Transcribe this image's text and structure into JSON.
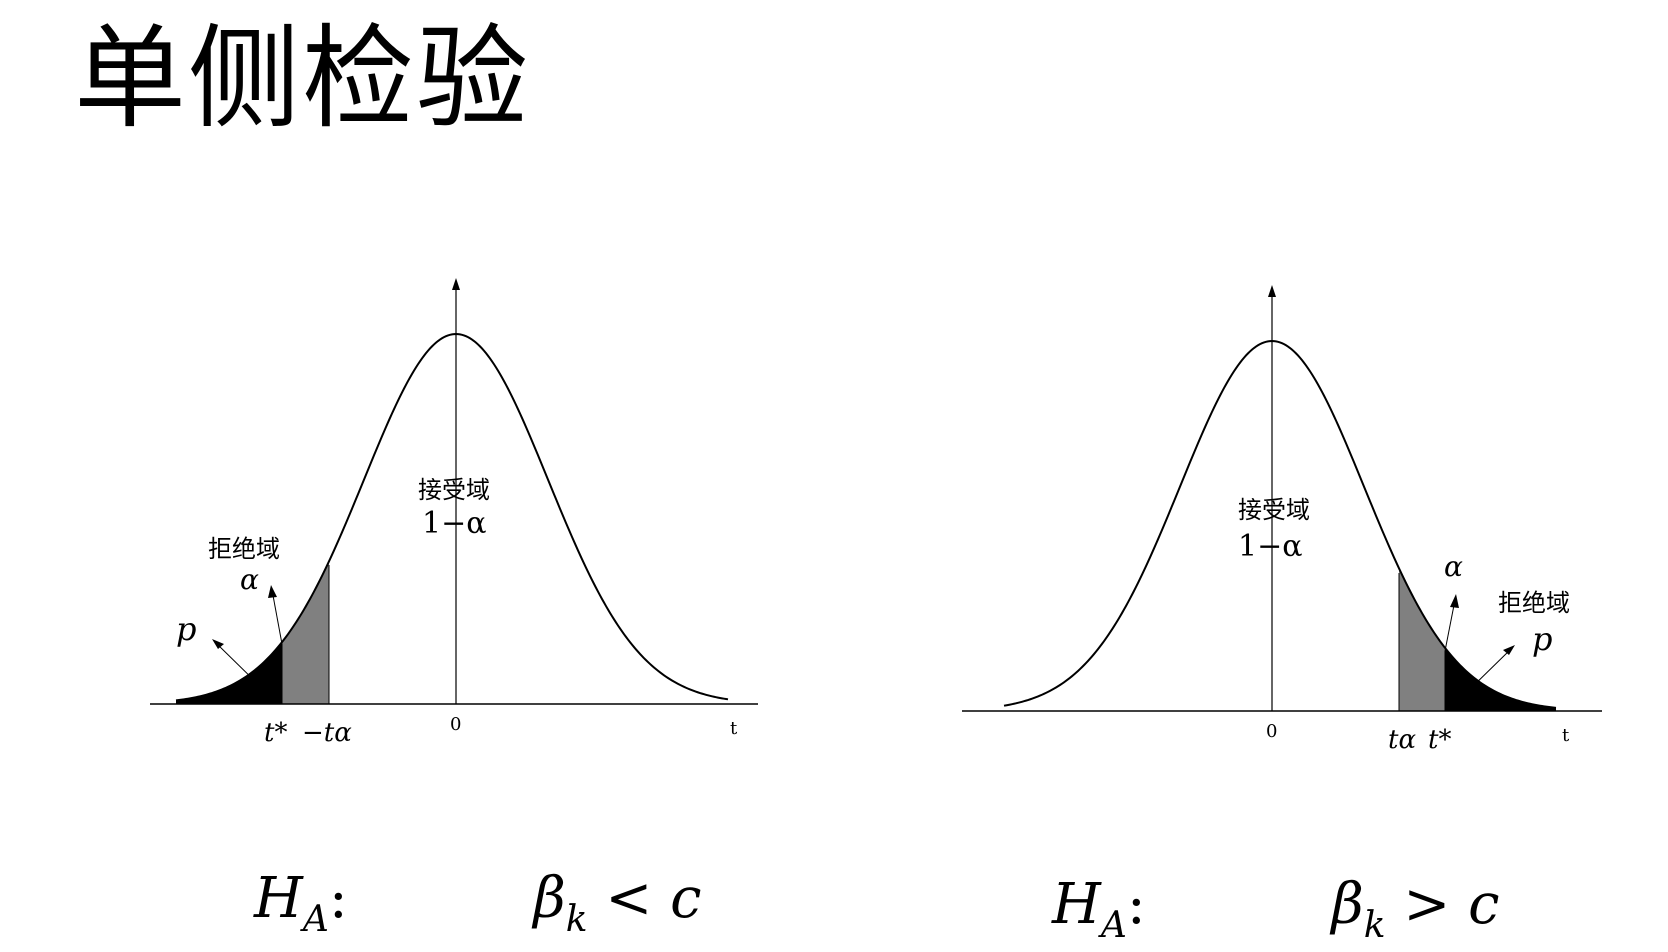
{
  "title": "单侧检验",
  "left_panel": {
    "zero_label": "0",
    "t_label": "t",
    "accept_region": "接受域",
    "accept_prob": "1−α",
    "reject_region": "拒绝域",
    "alpha_label": "α",
    "p_label": "p",
    "tstar_label": "t*",
    "crit_label": "−tα",
    "hypothesis_prefix": "H",
    "hypothesis_sub": "A",
    "hypothesis_colon": ":",
    "hypothesis_beta": "β",
    "hypothesis_k": "k",
    "hypothesis_rel": "< c"
  },
  "right_panel": {
    "zero_label": "0",
    "t_label": "t",
    "accept_region": "接受域",
    "accept_prob": "1−α",
    "reject_region": "拒绝域",
    "alpha_label": "α",
    "p_label": "p",
    "tstar_label": "t*",
    "crit_label": "tα",
    "hypothesis_prefix": "H",
    "hypothesis_sub": "A",
    "hypothesis_colon": ":",
    "hypothesis_beta": "β",
    "hypothesis_k": "k",
    "hypothesis_rel": "> c"
  },
  "colors": {
    "reject_black": "#000000",
    "alpha_grey": "#808080"
  }
}
